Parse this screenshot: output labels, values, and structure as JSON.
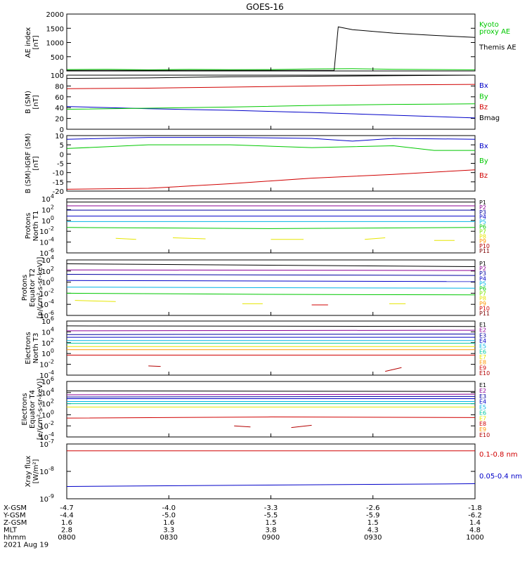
{
  "title": "GOES-16",
  "colors": {
    "black": "#000000",
    "red": "#d00000",
    "green": "#00c800",
    "blue": "#0000c8",
    "cyan": "#00b4e6",
    "teal": "#00c8a0",
    "lime": "#7de600",
    "yellow": "#e6e600",
    "orange": "#ff9600",
    "darkred": "#b40000",
    "maroon": "#7d0000",
    "purple": "#8c0096",
    "navy": "#0000a0"
  },
  "chart_data": [
    {
      "type": "line",
      "ylabel": "AE index\n[nT]",
      "ylim": [
        0,
        2000
      ],
      "yticks": [
        "0",
        "500",
        "1000",
        "1500",
        "2000"
      ],
      "series": [
        {
          "name": "Kyoto\nproxy AE",
          "color_key": "green",
          "x": [
            0.0,
            0.1,
            0.2,
            0.3,
            0.4,
            0.5,
            0.6,
            0.7,
            0.8,
            0.9,
            1.0
          ],
          "values": [
            50,
            60,
            40,
            55,
            45,
            50,
            70,
            80,
            60,
            50,
            40
          ]
        },
        {
          "name": "Themis AE",
          "color_key": "black",
          "x": [
            0.0,
            0.2,
            0.4,
            0.6,
            0.655,
            0.665,
            0.7,
            0.8,
            0.9,
            1.0
          ],
          "values": [
            20,
            20,
            20,
            20,
            20,
            1550,
            1450,
            1330,
            1250,
            1180
          ]
        }
      ]
    },
    {
      "type": "line",
      "ylabel": "B (SM)\n[nT]",
      "ylim": [
        0,
        100
      ],
      "yticks": [
        "0",
        "20",
        "40",
        "60",
        "80",
        "100"
      ],
      "series": [
        {
          "name": "Bx",
          "color_key": "blue",
          "x": [
            0.0,
            0.2,
            0.4,
            0.6,
            0.8,
            1.0
          ],
          "values": [
            42,
            38,
            35,
            31,
            26,
            21
          ]
        },
        {
          "name": "By",
          "color_key": "green",
          "x": [
            0.0,
            0.2,
            0.4,
            0.6,
            0.8,
            1.0
          ],
          "values": [
            37,
            39,
            41,
            44,
            46,
            47
          ]
        },
        {
          "name": "Bz",
          "color_key": "red",
          "x": [
            0.0,
            0.2,
            0.4,
            0.6,
            0.8,
            1.0
          ],
          "values": [
            75,
            76,
            78,
            80,
            82,
            83
          ]
        },
        {
          "name": "Bmag",
          "color_key": "black",
          "x": [
            0.0,
            0.2,
            0.4,
            0.6,
            0.8,
            1.0
          ],
          "values": [
            94,
            95,
            97,
            98,
            99,
            100
          ]
        }
      ]
    },
    {
      "type": "line",
      "ylabel": "B (SM)-IGRF (SM)\n[nT]",
      "ylim": [
        -20,
        10
      ],
      "yticks": [
        "-20",
        "-15",
        "-10",
        "-5",
        "0",
        "5",
        "10"
      ],
      "series": [
        {
          "name": "Bx",
          "color_key": "blue",
          "x": [
            0.0,
            0.2,
            0.4,
            0.6,
            0.7,
            0.8,
            1.0
          ],
          "values": [
            8,
            9,
            9,
            8.5,
            7,
            8.5,
            8
          ]
        },
        {
          "name": "By",
          "color_key": "green",
          "x": [
            0.0,
            0.2,
            0.4,
            0.6,
            0.8,
            0.9,
            1.0
          ],
          "values": [
            3,
            5,
            5,
            3.5,
            4.5,
            2,
            2
          ]
        },
        {
          "name": "Bz",
          "color_key": "red",
          "x": [
            0.0,
            0.2,
            0.4,
            0.6,
            0.8,
            1.0
          ],
          "values": [
            -19,
            -18.5,
            -16,
            -13,
            -11,
            -8.5
          ]
        }
      ]
    },
    {
      "type": "line",
      "log": true,
      "ylabel": "Protons\nNorth T1",
      "ylim": [
        -6,
        4
      ],
      "yticks": [
        "10^4",
        "10^2",
        "10^0",
        "10^-2",
        "10^-4",
        "10^-6"
      ],
      "series": [
        {
          "name": "P1",
          "color_key": "black",
          "x": [
            0,
            1
          ],
          "values": [
            3.4,
            3.4
          ]
        },
        {
          "name": "P2",
          "color_key": "purple",
          "x": [
            0,
            1
          ],
          "values": [
            2.7,
            2.7
          ]
        },
        {
          "name": "P3",
          "color_key": "navy",
          "x": [
            0,
            1
          ],
          "values": [
            1.9,
            1.9
          ]
        },
        {
          "name": "P4",
          "color_key": "blue",
          "x": [
            0,
            1
          ],
          "values": [
            0.8,
            0.8
          ]
        },
        {
          "name": "P5",
          "color_key": "cyan",
          "x": [
            0,
            1
          ],
          "values": [
            -0.2,
            -0.2
          ]
        },
        {
          "name": "P6",
          "color_key": "green",
          "x": [
            0,
            0.5,
            1
          ],
          "values": [
            -1.3,
            -1.5,
            -1.3
          ]
        },
        {
          "name": "P7",
          "color_key": "lime",
          "x": [],
          "values": []
        },
        {
          "name": "P8",
          "color_key": "yellow",
          "x": [
            0.12,
            0.17,
            0.26,
            0.34,
            0.5,
            0.58,
            0.73,
            0.78,
            0.9,
            0.95
          ],
          "values": [
            -3.3,
            -3.5,
            -3.2,
            -3.4,
            -3.5,
            -3.5,
            -3.5,
            -3.2,
            -3.7,
            -3.7
          ],
          "gaps": true
        },
        {
          "name": "P9",
          "color_key": "orange",
          "x": [],
          "values": []
        },
        {
          "name": "P10",
          "color_key": "darkred",
          "x": [],
          "values": []
        },
        {
          "name": "P11",
          "color_key": "maroon",
          "x": [],
          "values": []
        }
      ]
    },
    {
      "type": "line",
      "log": true,
      "ylabel": "Protons\nEquator T2\n[p/(cm²-s-sr-keV)]",
      "ylim": [
        -6,
        4
      ],
      "yticks": [
        "10^4",
        "10^2",
        "10^0",
        "10^-2",
        "10^-4",
        "10^-6"
      ],
      "series": [
        {
          "name": "P1",
          "color_key": "black",
          "x": [
            0,
            1
          ],
          "values": [
            3.3,
            2.8
          ]
        },
        {
          "name": "P2",
          "color_key": "purple",
          "x": [
            0,
            1
          ],
          "values": [
            2.2,
            2.1
          ]
        },
        {
          "name": "P3",
          "color_key": "navy",
          "x": [
            0,
            1
          ],
          "values": [
            1.4,
            1.2
          ]
        },
        {
          "name": "P4",
          "color_key": "blue",
          "x": [
            0,
            1
          ],
          "values": [
            0.3,
            0.1
          ]
        },
        {
          "name": "P5",
          "color_key": "cyan",
          "x": [
            0,
            1
          ],
          "values": [
            -0.9,
            -1.1
          ]
        },
        {
          "name": "P6",
          "color_key": "green",
          "x": [
            0,
            0.5,
            1
          ],
          "values": [
            -2.0,
            -2.2,
            -2.3
          ]
        },
        {
          "name": "P7",
          "color_key": "lime",
          "x": [],
          "values": []
        },
        {
          "name": "P8",
          "color_key": "yellow",
          "x": [
            0.02,
            0.12,
            0.43,
            0.48,
            0.79,
            0.83
          ],
          "values": [
            -3.3,
            -3.5,
            -3.9,
            -3.9,
            -3.9,
            -3.9
          ],
          "gaps": true
        },
        {
          "name": "P9",
          "color_key": "orange",
          "x": [],
          "values": []
        },
        {
          "name": "P10",
          "color_key": "red",
          "x": [
            0.6,
            0.64
          ],
          "values": [
            -4.1,
            -4.1
          ]
        },
        {
          "name": "P11",
          "color_key": "maroon",
          "x": [],
          "values": []
        }
      ]
    },
    {
      "type": "line",
      "log": true,
      "ylabel": "Electrons\nNorth T3",
      "ylim": [
        -4,
        6
      ],
      "yticks": [
        "10^6",
        "10^4",
        "10^2",
        "10^0",
        "10^-2",
        "10^-4"
      ],
      "series": [
        {
          "name": "E1",
          "color_key": "black",
          "x": [
            0,
            1
          ],
          "values": [
            5.1,
            5.0
          ]
        },
        {
          "name": "E2",
          "color_key": "purple",
          "x": [
            0,
            1
          ],
          "values": [
            4.2,
            4.3
          ]
        },
        {
          "name": "E3",
          "color_key": "navy",
          "x": [
            0,
            1
          ],
          "values": [
            3.5,
            3.6
          ]
        },
        {
          "name": "E4",
          "color_key": "blue",
          "x": [
            0,
            1
          ],
          "values": [
            3.0,
            3.0
          ]
        },
        {
          "name": "E5",
          "color_key": "cyan",
          "x": [
            0,
            1
          ],
          "values": [
            2.4,
            2.4
          ]
        },
        {
          "name": "E6",
          "color_key": "teal",
          "x": [
            0,
            1
          ],
          "values": [
            1.9,
            1.9
          ]
        },
        {
          "name": "E7",
          "color_key": "yellow",
          "x": [
            0,
            1
          ],
          "values": [
            1.3,
            1.3
          ]
        },
        {
          "name": "E8",
          "color_key": "orange",
          "x": [
            0,
            1
          ],
          "values": [
            0.7,
            0.7
          ]
        },
        {
          "name": "E9",
          "color_key": "red",
          "x": [
            0,
            1
          ],
          "values": [
            -0.3,
            -0.3
          ]
        },
        {
          "name": "E10",
          "color_key": "darkred",
          "x": [
            0.2,
            0.23,
            0.78,
            0.82
          ],
          "values": [
            -2.3,
            -2.4,
            -3.3,
            -2.6
          ],
          "gaps": true
        }
      ]
    },
    {
      "type": "line",
      "log": true,
      "ylabel": "Electrons\nEquator T4\n[e/(cm²-s-sr-keV)]",
      "ylim": [
        -4,
        6
      ],
      "yticks": [
        "10^6",
        "10^4",
        "10^2",
        "10^0",
        "10^-2",
        "10^-4"
      ],
      "series": [
        {
          "name": "E1",
          "color_key": "black",
          "x": [
            0,
            1
          ],
          "values": [
            4.3,
            4.2
          ]
        },
        {
          "name": "E2",
          "color_key": "purple",
          "x": [
            0,
            1
          ],
          "values": [
            3.6,
            3.7
          ]
        },
        {
          "name": "E3",
          "color_key": "navy",
          "x": [
            0,
            1
          ],
          "values": [
            3.2,
            3.3
          ]
        },
        {
          "name": "E4",
          "color_key": "blue",
          "x": [
            0,
            1
          ],
          "values": [
            2.9,
            2.9
          ]
        },
        {
          "name": "E5",
          "color_key": "cyan",
          "x": [
            0,
            1
          ],
          "values": [
            2.4,
            2.4
          ]
        },
        {
          "name": "E6",
          "color_key": "teal",
          "x": [
            0,
            1
          ],
          "values": [
            2.0,
            2.0
          ]
        },
        {
          "name": "E7",
          "color_key": "yellow",
          "x": [
            0,
            1
          ],
          "values": [
            1.4,
            1.4
          ]
        },
        {
          "name": "E8",
          "color_key": "red",
          "x": [
            0,
            0.5,
            1
          ],
          "values": [
            -0.6,
            -0.4,
            -0.5
          ]
        },
        {
          "name": "E9",
          "color_key": "orange",
          "x": [],
          "values": []
        },
        {
          "name": "E10",
          "color_key": "darkred",
          "x": [
            0.41,
            0.45,
            0.55,
            0.6,
            0.65
          ],
          "values": [
            -2.0,
            -2.2,
            -2.3,
            -1.9,
            -2.0
          ],
          "gaps": true
        }
      ]
    },
    {
      "type": "line",
      "log": true,
      "ylabel": "Xray flux\n[W/m²]",
      "ylim": [
        -9,
        -7
      ],
      "yticks": [
        "10^-7",
        "10^-8",
        "10^-9"
      ],
      "series": [
        {
          "name": "0.1-0.8 nm",
          "color_key": "red",
          "x": [
            0,
            1
          ],
          "values": [
            -7.25,
            -7.25
          ]
        },
        {
          "name": "0.05-0.4 nm",
          "color_key": "blue",
          "x": [
            0,
            1
          ],
          "values": [
            -8.55,
            -8.45
          ]
        }
      ]
    }
  ],
  "xaxis": {
    "ticks": [
      "0800",
      "0830",
      "0900",
      "0930",
      "1000"
    ],
    "rows": [
      {
        "label": "X-GSM",
        "values": [
          "-4.7",
          "-4.0",
          "-3.3",
          "-2.6",
          "-1.8"
        ]
      },
      {
        "label": "Y-GSM",
        "values": [
          "-4.4",
          "-5.0",
          "-5.5",
          "-5.9",
          "-6.2"
        ]
      },
      {
        "label": "Z-GSM",
        "values": [
          "1.6",
          "1.6",
          "1.5",
          "1.5",
          "1.4"
        ]
      },
      {
        "label": "MLT",
        "values": [
          "2.8",
          "3.3",
          "3.8",
          "4.3",
          "4.8"
        ]
      },
      {
        "label": "hhmm",
        "values": [
          "0800",
          "0830",
          "0900",
          "0930",
          "1000"
        ]
      }
    ],
    "date": "2021 Aug 19"
  }
}
